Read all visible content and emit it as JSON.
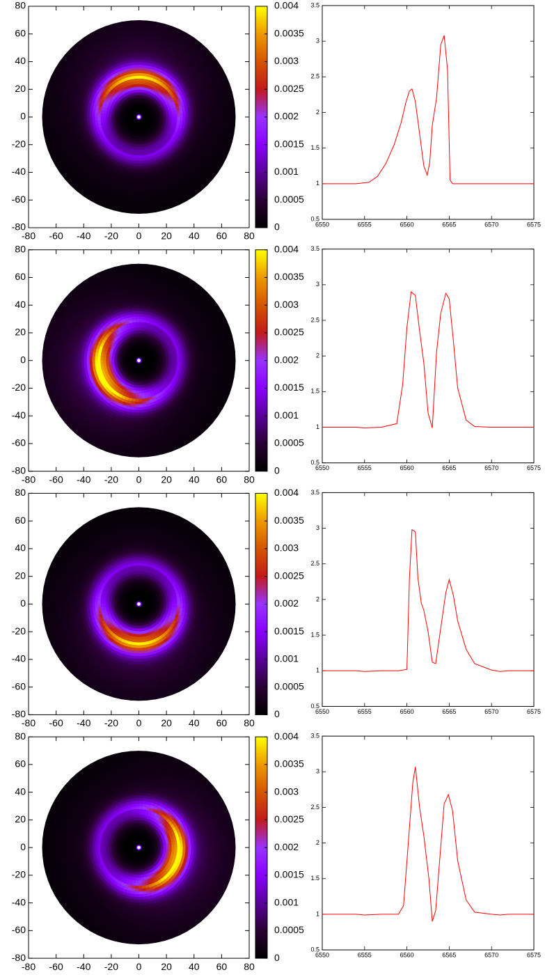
{
  "figure": {
    "panel_count": 4,
    "disk_axis_ticks": [
      "-80",
      "-60",
      "-40",
      "-20",
      "0",
      "20",
      "40",
      "60",
      "80"
    ],
    "colorbar_ticks": [
      "0",
      "0.0005",
      "0.001",
      "0.0015",
      "0.002",
      "0.0025",
      "0.003",
      "0.0035",
      "0.004"
    ],
    "profile_x_ticks": [
      "6550",
      "6555",
      "6560",
      "6565",
      "6570",
      "6575"
    ],
    "profile_y_ticks": [
      "0.5",
      "1",
      "1.5",
      "2",
      "2.5",
      "3",
      "3.5"
    ]
  },
  "colors": {
    "profile_line": "#ff0000",
    "colormap": [
      "#000000",
      "#2a0033",
      "#5a0099",
      "#8a00ff",
      "#9933ff",
      "#c11a1a",
      "#d45500",
      "#ee9900",
      "#ffff00"
    ]
  },
  "chart_data": [
    {
      "type": "heatmap",
      "panel": 1,
      "subtype": "polar disk emissivity map",
      "xlim": [
        -80,
        80
      ],
      "ylim": [
        -80,
        80
      ],
      "disk_outer_radius": 70,
      "colorbar_range": [
        0,
        0.004
      ],
      "ring": {
        "radius": 27,
        "width": 9,
        "brightest_angle_deg": 90,
        "peak_value": 0.0031,
        "base_value": 0.0011
      },
      "central_star": {
        "x": 0,
        "y": 0
      }
    },
    {
      "type": "line",
      "panel": 1,
      "x": [
        6550,
        6552,
        6554,
        6555.5,
        6556.5,
        6557.5,
        6558.5,
        6559.3,
        6559.9,
        6560.3,
        6560.6,
        6561,
        6561.5,
        6562,
        6562.4,
        6562.7,
        6563,
        6563.5,
        6564,
        6564.4,
        6564.8,
        6565.1,
        6565.4,
        6566,
        6568,
        6570,
        6572,
        6575
      ],
      "y": [
        1,
        1,
        1,
        1.02,
        1.1,
        1.28,
        1.55,
        1.85,
        2.15,
        2.3,
        2.33,
        2.15,
        1.7,
        1.25,
        1.12,
        1.3,
        1.82,
        2.2,
        2.95,
        3.08,
        2.6,
        1.05,
        1,
        1,
        1,
        1,
        1,
        1
      ],
      "xlim": [
        6550,
        6575
      ],
      "ylim": [
        0.5,
        3.5
      ]
    },
    {
      "type": "heatmap",
      "panel": 2,
      "subtype": "polar disk emissivity map",
      "xlim": [
        -80,
        80
      ],
      "ylim": [
        -80,
        80
      ],
      "disk_outer_radius": 70,
      "colorbar_range": [
        0,
        0.004
      ],
      "ring": {
        "radius": 27,
        "width": 9,
        "brightest_angle_deg": 200,
        "peak_value": 0.0036,
        "base_value": 0.0011
      },
      "central_star": {
        "x": 0,
        "y": 0
      }
    },
    {
      "type": "line",
      "panel": 2,
      "x": [
        6550,
        6552,
        6554,
        6555,
        6557,
        6558.8,
        6559.5,
        6560,
        6560.5,
        6561,
        6561.5,
        6562,
        6562.5,
        6563,
        6563.5,
        6564,
        6564.6,
        6565,
        6565.5,
        6566,
        6567,
        6568,
        6570,
        6575
      ],
      "y": [
        1,
        1,
        1,
        0.99,
        1,
        1.05,
        1.6,
        2.4,
        2.9,
        2.85,
        2.35,
        1.9,
        1.2,
        0.99,
        2.05,
        2.6,
        2.88,
        2.8,
        2.2,
        1.55,
        1.1,
        1.01,
        1,
        1
      ],
      "xlim": [
        6550,
        6575
      ],
      "ylim": [
        0.5,
        3.5
      ]
    },
    {
      "type": "heatmap",
      "panel": 3,
      "subtype": "polar disk emissivity map",
      "xlim": [
        -80,
        80
      ],
      "ylim": [
        -80,
        80
      ],
      "disk_outer_radius": 70,
      "colorbar_range": [
        0,
        0.004
      ],
      "ring": {
        "radius": 27,
        "width": 9,
        "brightest_angle_deg": 270,
        "peak_value": 0.0031,
        "base_value": 0.0011
      },
      "central_star": {
        "x": 0,
        "y": 0
      }
    },
    {
      "type": "line",
      "panel": 3,
      "x": [
        6550,
        6552,
        6554,
        6555,
        6557,
        6559,
        6560,
        6560.3,
        6560.6,
        6561,
        6561.3,
        6561.7,
        6562,
        6562.5,
        6563,
        6563.4,
        6564,
        6564.6,
        6565,
        6565.5,
        6566,
        6567,
        6568,
        6570,
        6571,
        6572,
        6575
      ],
      "y": [
        1,
        1,
        1,
        0.99,
        1,
        1,
        1.02,
        2.3,
        2.98,
        2.95,
        2.3,
        1.95,
        1.85,
        1.55,
        1.12,
        1.1,
        1.6,
        2.1,
        2.28,
        2.05,
        1.7,
        1.3,
        1.1,
        1.01,
        0.99,
        1,
        1
      ],
      "xlim": [
        6550,
        6575
      ],
      "ylim": [
        0.5,
        3.5
      ]
    },
    {
      "type": "heatmap",
      "panel": 4,
      "subtype": "polar disk emissivity map",
      "xlim": [
        -80,
        80
      ],
      "ylim": [
        -80,
        80
      ],
      "disk_outer_radius": 70,
      "colorbar_range": [
        0,
        0.004
      ],
      "ring": {
        "radius": 27,
        "width": 9,
        "brightest_angle_deg": -15,
        "peak_value": 0.0035,
        "base_value": 0.0011
      },
      "central_star": {
        "x": 0,
        "y": 0
      }
    },
    {
      "type": "line",
      "panel": 4,
      "x": [
        6550,
        6552,
        6554,
        6555,
        6557,
        6559,
        6559.6,
        6560.1,
        6560.7,
        6561,
        6561.5,
        6562,
        6562.6,
        6563,
        6563.4,
        6563.9,
        6564.4,
        6564.9,
        6565.4,
        6566,
        6567,
        6568,
        6570,
        6571,
        6572,
        6575
      ],
      "y": [
        1,
        1,
        1,
        0.99,
        1,
        1,
        1.12,
        1.9,
        2.85,
        3.07,
        2.5,
        2.1,
        1.5,
        0.9,
        1.05,
        1.8,
        2.55,
        2.68,
        2.45,
        1.75,
        1.2,
        1.03,
        1,
        0.99,
        1,
        1
      ],
      "xlim": [
        6550,
        6575
      ],
      "ylim": [
        0.5,
        3.5
      ]
    }
  ]
}
